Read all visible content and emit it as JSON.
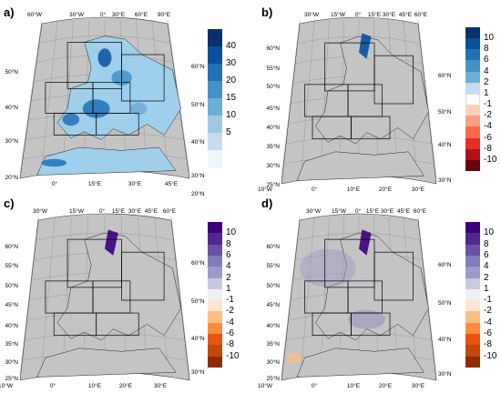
{
  "panels": [
    {
      "label": "a)",
      "lon_ticks_top": [
        "60°W",
        "30°W",
        "0°",
        "30°E",
        "60°E",
        "90°E"
      ],
      "lon_ticks_bottom": [
        "0°",
        "15°E",
        "30°E",
        "45°E"
      ],
      "lat_ticks_left": [
        "50°N",
        "40°N",
        "30°N",
        "20°N"
      ],
      "lat_ticks_right": [
        "60°N",
        "50°N",
        "40°N",
        "30°N",
        "20°N"
      ],
      "colorbar": {
        "labels": [
          "40",
          "30",
          "20",
          "15",
          "10",
          "5"
        ],
        "colors": [
          "#08306b",
          "#08519c",
          "#2171b5",
          "#4292c6",
          "#6baed6",
          "#9ecae1",
          "#c6dbef",
          "#eff6fc"
        ]
      }
    },
    {
      "label": "b)",
      "lon_ticks_top": [
        "30°W",
        "15°W",
        "0°",
        "15°E",
        "30°E",
        "45°E",
        "60°E"
      ],
      "lon_ticks_bottom": [
        "10°W",
        "0°",
        "10°E",
        "20°E",
        "30°E"
      ],
      "lat_ticks_left": [
        "60°N",
        "55°N",
        "50°N",
        "45°N",
        "40°N",
        "35°N",
        "30°N",
        "25°N"
      ],
      "lat_ticks_right": [
        "60°N",
        "50°N",
        "40°N",
        "30°N"
      ],
      "colorbar": {
        "labels": [
          "10",
          "8",
          "6",
          "4",
          "2",
          "1",
          "-1",
          "-2",
          "-4",
          "-6",
          "-8",
          "-10"
        ],
        "colors": [
          "#08306b",
          "#08519c",
          "#2171b5",
          "#4292c6",
          "#6baed6",
          "#c6dbef",
          "#ffffff",
          "#fdd0bb",
          "#fc9f81",
          "#fb6a4a",
          "#e32f27",
          "#b11218",
          "#67000d"
        ]
      }
    },
    {
      "label": "c)",
      "lon_ticks_top": [
        "30°W",
        "15°W",
        "0°",
        "15°E",
        "30°E",
        "45°E",
        "60°E"
      ],
      "lon_ticks_bottom": [
        "10°W",
        "0°",
        "10°E",
        "20°E",
        "30°E"
      ],
      "lat_ticks_left": [
        "60°N",
        "55°N",
        "50°N",
        "45°N",
        "40°N",
        "35°N",
        "30°N",
        "25°N"
      ],
      "lat_ticks_right": [
        "60°N",
        "50°N",
        "40°N",
        "30°N"
      ],
      "colorbar": {
        "labels": [
          "10",
          "8",
          "6",
          "4",
          "2",
          "1",
          "-1",
          "-2",
          "-4",
          "-6",
          "-8",
          "-10"
        ],
        "colors": [
          "#3f007d",
          "#54278f",
          "#6a51a3",
          "#807dba",
          "#9e9ac8",
          "#cbc9e2",
          "#f2f0f7",
          "#fee6ce",
          "#fdbe85",
          "#fd8d3c",
          "#e6550d",
          "#c2480a",
          "#8c2d04"
        ]
      }
    },
    {
      "label": "d)",
      "lon_ticks_top": [
        "30°W",
        "15°W",
        "0°",
        "15°E",
        "30°E",
        "45°E",
        "60°E"
      ],
      "lon_ticks_bottom": [
        "10°W",
        "0°",
        "10°E",
        "20°E",
        "30°E"
      ],
      "lat_ticks_left": [
        "60°N",
        "55°N",
        "50°N",
        "45°N",
        "40°N",
        "35°N",
        "30°N",
        "25°N"
      ],
      "lat_ticks_right": [
        "60°N",
        "50°N",
        "40°N",
        "30°N"
      ],
      "colorbar": {
        "labels": [
          "10",
          "8",
          "6",
          "4",
          "2",
          "1",
          "-1",
          "-2",
          "-4",
          "-6",
          "-8",
          "-10"
        ],
        "colors": [
          "#3f007d",
          "#54278f",
          "#6a51a3",
          "#807dba",
          "#9e9ac8",
          "#cbc9e2",
          "#f2f0f7",
          "#fee6ce",
          "#fdbe85",
          "#fd8d3c",
          "#e6550d",
          "#c2480a",
          "#8c2d04"
        ]
      }
    }
  ]
}
